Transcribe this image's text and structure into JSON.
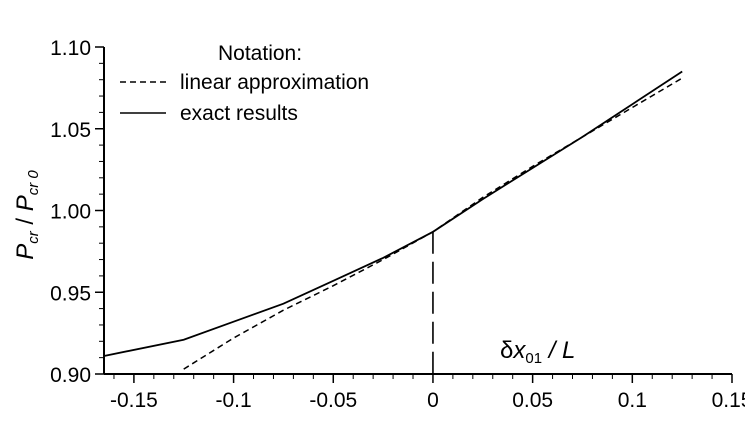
{
  "chart_data": {
    "type": "line",
    "title": "",
    "xlabel": "δx01 / L",
    "ylabel": "Pcr / Pcr0",
    "xlim": [
      -0.165,
      0.15
    ],
    "ylim": [
      0.9,
      1.1
    ],
    "x_ticks": [
      "-0.15",
      "-0.1",
      "-0.05",
      "0",
      "0.05",
      "0.1",
      "0.15"
    ],
    "y_ticks": [
      "0.90",
      "0.95",
      "1.00",
      "1.05",
      "1.10"
    ],
    "x_tick_values": [
      -0.15,
      -0.1,
      -0.05,
      0,
      0.05,
      0.1,
      0.15
    ],
    "y_tick_values": [
      0.9,
      0.95,
      1.0,
      1.05,
      1.1
    ],
    "grid": false,
    "legend_title": "Notation:",
    "legend_placement": "top-left",
    "series": [
      {
        "name": "linear approximation",
        "style": "dashed",
        "x": [
          -0.125,
          -0.1,
          -0.075,
          -0.05,
          -0.025,
          0,
          0.025,
          0.05,
          0.075,
          0.1,
          0.125
        ],
        "y": [
          0.903,
          0.922,
          0.939,
          0.954,
          0.97,
          0.987,
          1.008,
          1.027,
          1.045,
          1.063,
          1.081
        ]
      },
      {
        "name": "exact results",
        "style": "solid",
        "x": [
          -0.165,
          -0.125,
          -0.1,
          -0.075,
          -0.05,
          -0.025,
          0,
          0.025,
          0.05,
          0.075,
          0.1,
          0.125
        ],
        "y": [
          0.911,
          0.921,
          0.932,
          0.943,
          0.957,
          0.971,
          0.987,
          1.007,
          1.026,
          1.045,
          1.065,
          1.085
        ]
      }
    ],
    "reference_line": {
      "x": 0,
      "style": "dashed"
    }
  },
  "labels": {
    "x_axis_delta": "δ",
    "x_axis_var": "x",
    "x_axis_sub": "01",
    "x_axis_rest": " / L",
    "y_axis_p1": "P",
    "y_axis_sub1": "cr",
    "y_axis_mid": " / ",
    "y_axis_p2": "P",
    "y_axis_sub2": "cr 0"
  }
}
